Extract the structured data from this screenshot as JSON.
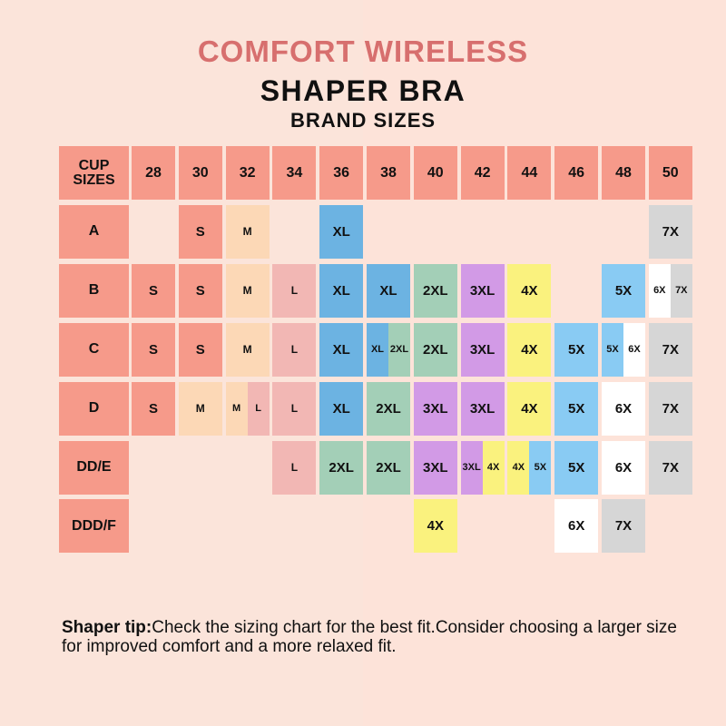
{
  "title": {
    "line1": "COMFORT WIRELESS",
    "line2": "SHAPER BRA",
    "line3": "BRAND SIZES"
  },
  "colors": {
    "header": "#f69a8a",
    "S": "#f69a8a",
    "M": "#fcd8b6",
    "L": "#f2b7b4",
    "XL": "#6cb3e2",
    "2XL": "#a3cfb7",
    "3XL": "#d29ae6",
    "4X": "#faf27e",
    "5X": "#89cbf3",
    "6X": "#ffffff",
    "7X": "#d6d6d6"
  },
  "chart_data": {
    "type": "table",
    "corner_label": "CUP SIZES",
    "band_sizes": [
      "28",
      "30",
      "32",
      "34",
      "36",
      "38",
      "40",
      "42",
      "44",
      "46",
      "48",
      "50"
    ],
    "cups": [
      "A",
      "B",
      "C",
      "D",
      "DD/E",
      "DDD/F"
    ],
    "rows": [
      {
        "cup": "A",
        "cells": {
          "30": [
            "S"
          ],
          "32": [
            "M"
          ],
          "36": [
            "XL"
          ],
          "50": [
            "7X"
          ]
        }
      },
      {
        "cup": "B",
        "cells": {
          "28": [
            "S"
          ],
          "30": [
            "S"
          ],
          "32": [
            "M"
          ],
          "34": [
            "L"
          ],
          "36": [
            "XL"
          ],
          "38": [
            "XL"
          ],
          "40": [
            "2XL"
          ],
          "42": [
            "3XL"
          ],
          "44": [
            "4X"
          ],
          "48": [
            "5X"
          ],
          "50": [
            "6X",
            "7X"
          ]
        }
      },
      {
        "cup": "C",
        "cells": {
          "28": [
            "S"
          ],
          "30": [
            "S"
          ],
          "32": [
            "M"
          ],
          "34": [
            "L"
          ],
          "36": [
            "XL"
          ],
          "38": [
            "XL",
            "2XL"
          ],
          "40": [
            "2XL"
          ],
          "42": [
            "3XL"
          ],
          "44": [
            "4X"
          ],
          "46": [
            "5X"
          ],
          "48": [
            "5X",
            "6X"
          ],
          "50": [
            "7X"
          ]
        }
      },
      {
        "cup": "D",
        "cells": {
          "28": [
            "S"
          ],
          "30": [
            "M"
          ],
          "32": [
            "M",
            "L"
          ],
          "34": [
            "L"
          ],
          "36": [
            "XL"
          ],
          "38": [
            "2XL"
          ],
          "40": [
            "3XL"
          ],
          "42": [
            "3XL"
          ],
          "44": [
            "4X"
          ],
          "46": [
            "5X"
          ],
          "48": [
            "6X"
          ],
          "50": [
            "7X"
          ]
        }
      },
      {
        "cup": "DD/E",
        "cells": {
          "34": [
            "L"
          ],
          "36": [
            "2XL"
          ],
          "38": [
            "2XL"
          ],
          "40": [
            "3XL"
          ],
          "42": [
            "3XL",
            "4X"
          ],
          "44": [
            "4X",
            "5X"
          ],
          "46": [
            "5X"
          ],
          "48": [
            "6X"
          ],
          "50": [
            "7X"
          ]
        }
      },
      {
        "cup": "DDD/F",
        "cells": {
          "40": [
            "4X"
          ],
          "46": [
            "6X"
          ],
          "48": [
            "7X"
          ]
        }
      }
    ]
  },
  "tip": {
    "label": "Shaper tip:",
    "text": "Check the sizing chart for the best fit.Consider choosing a larger size for improved comfort and a more relaxed fit."
  }
}
